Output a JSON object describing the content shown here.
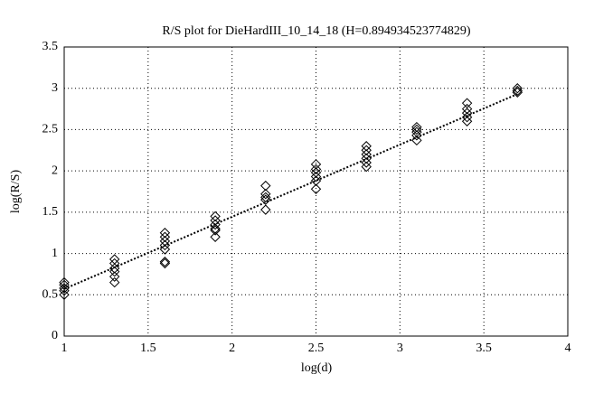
{
  "chart_data": {
    "type": "scatter",
    "title": "R/S plot for DieHardIII_10_14_18 (H=0.894934523774829)",
    "x_label": "log(d)",
    "y_label": "log(R/S)",
    "xlim": [
      1,
      4
    ],
    "ylim": [
      0,
      3.5
    ],
    "xticks": [
      1,
      1.5,
      2,
      2.5,
      3,
      3.5,
      4
    ],
    "yticks": [
      0,
      0.5,
      1,
      1.5,
      2,
      2.5,
      3,
      3.5
    ],
    "grid": true,
    "color": "#000000",
    "points": {
      "x": [
        1,
        1,
        1,
        1,
        1,
        1.3,
        1.3,
        1.3,
        1.3,
        1.3,
        1.3,
        1.6,
        1.6,
        1.6,
        1.6,
        1.6,
        1.6,
        1.6,
        1.9,
        1.9,
        1.9,
        1.9,
        1.9,
        1.9,
        2.2,
        2.2,
        2.2,
        2.2,
        2.2,
        2.5,
        2.5,
        2.5,
        2.5,
        2.5,
        2.5,
        2.8,
        2.8,
        2.8,
        2.8,
        2.8,
        2.8,
        3.1,
        3.1,
        3.1,
        3.1,
        3.1,
        3.4,
        3.4,
        3.4,
        3.4,
        3.4,
        3.7,
        3.7,
        3.7
      ],
      "y": [
        0.65,
        0.62,
        0.58,
        0.55,
        0.5,
        0.93,
        0.88,
        0.82,
        0.78,
        0.72,
        0.65,
        1.25,
        1.2,
        1.15,
        1.1,
        1.05,
        0.9,
        0.88,
        1.45,
        1.4,
        1.35,
        1.3,
        1.28,
        1.2,
        1.82,
        1.72,
        1.68,
        1.65,
        1.53,
        2.08,
        2.02,
        1.98,
        1.93,
        1.88,
        1.78,
        2.3,
        2.25,
        2.2,
        2.15,
        2.1,
        2.05,
        2.53,
        2.5,
        2.47,
        2.43,
        2.37,
        2.82,
        2.75,
        2.7,
        2.65,
        2.6,
        3.0,
        2.97,
        2.95
      ]
    },
    "fit_line": {
      "x": [
        1,
        3.7
      ],
      "y": [
        0.57,
        2.93
      ]
    }
  }
}
